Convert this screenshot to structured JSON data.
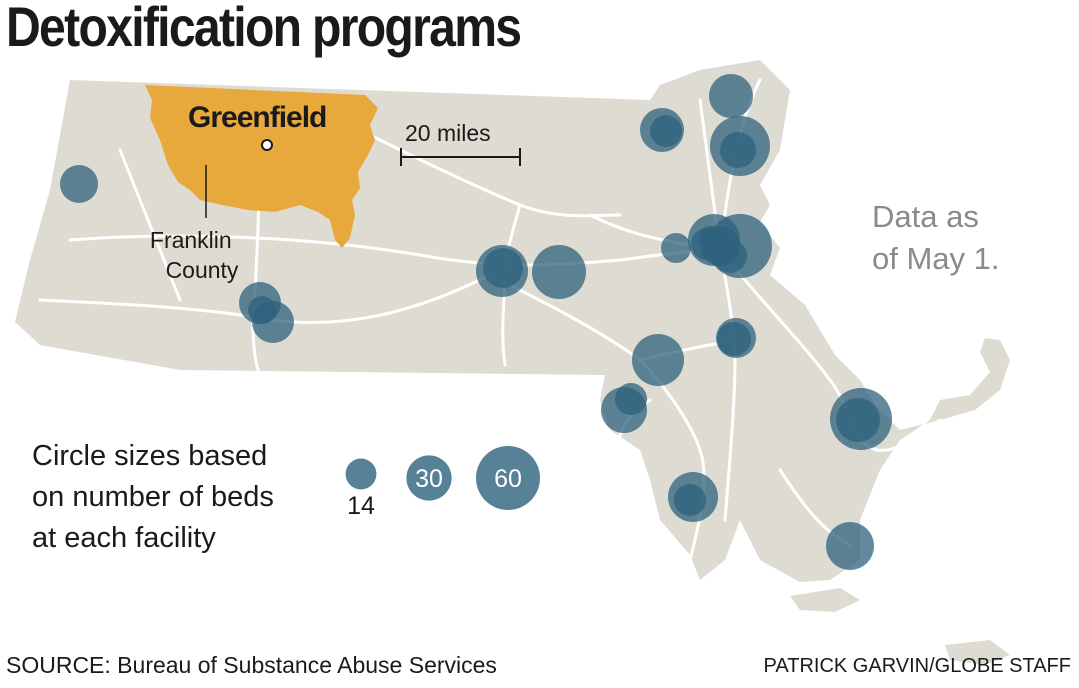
{
  "title": "Detoxification programs",
  "note": [
    "Data as",
    "of May 1."
  ],
  "map": {
    "highlight_county": "Franklin County",
    "county_label_lines": [
      "Franklin",
      "County"
    ],
    "city_label": "Greenfield",
    "scale_label": "20 miles"
  },
  "legend": {
    "text_lines": [
      "Circle sizes based",
      "on number of beds",
      "at each facility"
    ],
    "sizes": [
      14,
      30,
      60
    ],
    "labels": [
      "14",
      "30",
      "60"
    ]
  },
  "colors": {
    "state_fill": "#dedbd2",
    "county_fill": "#e8a93c",
    "circle_fill": "#2d617c",
    "roads": "#ffffff",
    "note_text": "#8a8a8a"
  },
  "facilities_count": 29,
  "source": "SOURCE: Bureau of Substance Abuse Services",
  "credit": "PATRICK GARVIN/GLOBE STAFF"
}
